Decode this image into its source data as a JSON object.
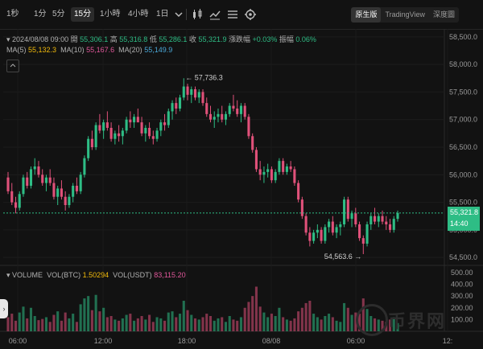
{
  "toolbar": {
    "intervals": [
      "1秒",
      "1分",
      "5分",
      "15分",
      "1小時",
      "4小時",
      "1日"
    ],
    "active_interval": "15分",
    "views": [
      "原生版",
      "TradingView",
      "深度圖"
    ],
    "active_view": "原生版"
  },
  "ohlc": {
    "datetime": "2024/08/08 09:00",
    "open_label": "開",
    "open": "55,306.1",
    "high_label": "高",
    "high": "55,316.8",
    "low_label": "低",
    "low": "55,286.1",
    "close_label": "收",
    "close": "55,321.9",
    "change_label": "漲跌幅",
    "change": "+0.03%",
    "amplitude_label": "振幅",
    "amplitude": "0.06%"
  },
  "ma": [
    {
      "label": "MA(5)",
      "value": "55,132.3",
      "color": "#f0b90b"
    },
    {
      "label": "MA(10)",
      "value": "55,167.6",
      "color": "#e0579a"
    },
    {
      "label": "MA(20)",
      "value": "55,149.9",
      "color": "#4aa8d8"
    }
  ],
  "volume_legend": {
    "title": "VOLUME",
    "btc_label": "VOL(BTC)",
    "btc_value": "1.50294",
    "btc_color": "#f0b90b",
    "usdt_label": "VOL(USDT)",
    "usdt_value": "83,115.20",
    "usdt_color": "#e0579a"
  },
  "price_axis": [
    "58,500.0",
    "58,000.0",
    "57,500.0",
    "57,000.0",
    "56,500.0",
    "56,000.0",
    "55,500.0",
    "55,000.0",
    "54,500.0"
  ],
  "volume_axis": [
    "500.00",
    "400.00",
    "300.00",
    "200.00",
    "100.00"
  ],
  "time_axis": [
    "06:00",
    "12:00",
    "18:00",
    "08/08",
    "06:00",
    "12:"
  ],
  "annotations": {
    "high": "57,736.3",
    "low": "54,563.6"
  },
  "current_price": {
    "value": "55,321.8",
    "countdown": "14:40"
  },
  "watermark": "币界网",
  "colors": {
    "up": "#2ebd85",
    "down": "#e0517a",
    "background": "#121212"
  },
  "chart_data": {
    "type": "candlestick",
    "ylim": [
      54400,
      58600
    ],
    "volume_ylim": [
      0,
      520
    ],
    "candles": [
      [
        55950,
        56050,
        55650,
        55700,
        120
      ],
      [
        55700,
        55850,
        55450,
        55500,
        150
      ],
      [
        55500,
        55600,
        55300,
        55400,
        90
      ],
      [
        55400,
        55700,
        55350,
        55650,
        160
      ],
      [
        55650,
        56000,
        55600,
        55950,
        210
      ],
      [
        55950,
        56050,
        55750,
        55800,
        110
      ],
      [
        55800,
        56150,
        55750,
        56100,
        200
      ],
      [
        56100,
        56300,
        56000,
        56150,
        130
      ],
      [
        56150,
        56250,
        55950,
        56000,
        95
      ],
      [
        56000,
        56100,
        55800,
        55850,
        105
      ],
      [
        55850,
        56000,
        55700,
        55950,
        120
      ],
      [
        55950,
        56100,
        55800,
        55850,
        80
      ],
      [
        55850,
        55950,
        55550,
        55600,
        140
      ],
      [
        55600,
        55800,
        55450,
        55750,
        170
      ],
      [
        55750,
        55900,
        55550,
        55600,
        90
      ],
      [
        55600,
        55700,
        55350,
        55450,
        160
      ],
      [
        55450,
        55650,
        55400,
        55600,
        110
      ],
      [
        55600,
        55850,
        55500,
        55800,
        150
      ],
      [
        55800,
        55950,
        55650,
        55700,
        80
      ],
      [
        55700,
        56050,
        55650,
        56000,
        230
      ],
      [
        56000,
        56350,
        55950,
        56300,
        280
      ],
      [
        56300,
        56700,
        56250,
        56650,
        300
      ],
      [
        56650,
        56800,
        56450,
        56500,
        180
      ],
      [
        56500,
        56950,
        56450,
        56900,
        310
      ],
      [
        56900,
        57100,
        56750,
        56800,
        170
      ],
      [
        56800,
        57000,
        56650,
        56950,
        200
      ],
      [
        56950,
        57150,
        56800,
        56850,
        120
      ],
      [
        56850,
        56950,
        56600,
        56650,
        130
      ],
      [
        56650,
        56800,
        56550,
        56750,
        100
      ],
      [
        56750,
        56900,
        56600,
        56700,
        90
      ],
      [
        56700,
        56850,
        56550,
        56800,
        110
      ],
      [
        56800,
        57050,
        56750,
        57000,
        140
      ],
      [
        57000,
        57150,
        56850,
        56950,
        150
      ],
      [
        56950,
        57100,
        56850,
        57050,
        90
      ],
      [
        57050,
        57200,
        56950,
        56950,
        110
      ],
      [
        56950,
        57050,
        56700,
        56750,
        130
      ],
      [
        56750,
        56900,
        56600,
        56850,
        100
      ],
      [
        56850,
        56950,
        56650,
        56700,
        140
      ],
      [
        56700,
        56800,
        56550,
        56650,
        80
      ],
      [
        56650,
        56850,
        56600,
        56800,
        120
      ],
      [
        56800,
        57000,
        56700,
        56950,
        110
      ],
      [
        56950,
        57100,
        56800,
        56900,
        90
      ],
      [
        56900,
        57200,
        56850,
        57150,
        160
      ],
      [
        57150,
        57350,
        57000,
        57300,
        170
      ],
      [
        57300,
        57400,
        57100,
        57200,
        120
      ],
      [
        57200,
        57450,
        57150,
        57400,
        150
      ],
      [
        57400,
        57750,
        57350,
        57600,
        260
      ],
      [
        57600,
        57650,
        57350,
        57450,
        180
      ],
      [
        57450,
        57600,
        57300,
        57550,
        140
      ],
      [
        57550,
        57600,
        57350,
        57400,
        110
      ],
      [
        57400,
        57550,
        57300,
        57500,
        100
      ],
      [
        57500,
        57550,
        57250,
        57300,
        120
      ],
      [
        57300,
        57400,
        57050,
        57100,
        150
      ],
      [
        57100,
        57250,
        56950,
        57000,
        130
      ],
      [
        57000,
        57150,
        56850,
        57050,
        90
      ],
      [
        57050,
        57200,
        56950,
        57100,
        110
      ],
      [
        57100,
        57250,
        56950,
        57000,
        120
      ],
      [
        57000,
        57150,
        56900,
        57100,
        80
      ],
      [
        57100,
        57300,
        57050,
        57250,
        130
      ],
      [
        57250,
        57450,
        57150,
        57200,
        100
      ],
      [
        57200,
        57350,
        57050,
        57100,
        90
      ],
      [
        57100,
        57300,
        56950,
        57250,
        120
      ],
      [
        57250,
        57300,
        57000,
        57050,
        200
      ],
      [
        57050,
        57100,
        56650,
        56700,
        250
      ],
      [
        56700,
        56750,
        56400,
        56450,
        300
      ],
      [
        56450,
        56500,
        56050,
        56100,
        380
      ],
      [
        56100,
        56250,
        55900,
        56000,
        210
      ],
      [
        56000,
        56150,
        55850,
        56050,
        160
      ],
      [
        56050,
        56200,
        55950,
        56100,
        120
      ],
      [
        56100,
        56150,
        55850,
        55900,
        150
      ],
      [
        55900,
        56100,
        55850,
        56050,
        130
      ],
      [
        56050,
        56300,
        56000,
        56250,
        200
      ],
      [
        56250,
        56300,
        56000,
        56050,
        120
      ],
      [
        56050,
        56200,
        56000,
        56150,
        100
      ],
      [
        56150,
        56250,
        56050,
        56100,
        90
      ],
      [
        56100,
        56150,
        55800,
        55850,
        110
      ],
      [
        55850,
        55900,
        55500,
        55550,
        170
      ],
      [
        55550,
        55600,
        55200,
        55250,
        200
      ],
      [
        55250,
        55300,
        54900,
        54950,
        240
      ],
      [
        54950,
        55050,
        54700,
        54800,
        260
      ],
      [
        54800,
        55000,
        54750,
        54950,
        150
      ],
      [
        54950,
        55100,
        54850,
        55000,
        120
      ],
      [
        55000,
        55050,
        54750,
        54800,
        100
      ],
      [
        54800,
        55100,
        54750,
        55050,
        130
      ],
      [
        55050,
        55200,
        54950,
        55150,
        150
      ],
      [
        55150,
        55250,
        54900,
        54950,
        120
      ],
      [
        54950,
        55100,
        54850,
        55050,
        90
      ],
      [
        55050,
        55150,
        54900,
        55100,
        80
      ],
      [
        55100,
        55600,
        55050,
        55550,
        240
      ],
      [
        55550,
        55600,
        55150,
        55200,
        200
      ],
      [
        55200,
        55350,
        55050,
        55300,
        140
      ],
      [
        55300,
        55400,
        55050,
        55100,
        160
      ],
      [
        55100,
        55150,
        54800,
        54850,
        150
      ],
      [
        54850,
        54900,
        54560,
        54750,
        280
      ],
      [
        54750,
        55150,
        54700,
        55100,
        190
      ],
      [
        55100,
        55300,
        55000,
        55250,
        130
      ],
      [
        55250,
        55400,
        55100,
        55150,
        110
      ],
      [
        55150,
        55300,
        55050,
        55250,
        100
      ],
      [
        55250,
        55350,
        55100,
        55150,
        90
      ],
      [
        55150,
        55250,
        55000,
        55100,
        80
      ],
      [
        55100,
        55200,
        54950,
        55000,
        100
      ],
      [
        55000,
        55250,
        54950,
        55200,
        120
      ],
      [
        55200,
        55350,
        55150,
        55306,
        70
      ]
    ]
  }
}
